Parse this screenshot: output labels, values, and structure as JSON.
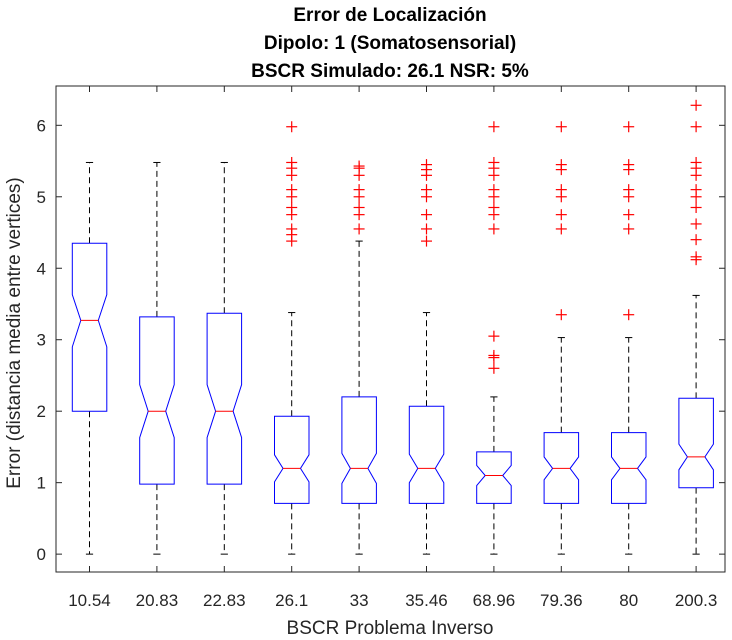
{
  "chart_data": {
    "type": "box",
    "title": [
      "Error de Localización",
      "Dipolo: 1 (Somatosensorial)",
      "BSCR Simulado: 26.1 NSR: 5%"
    ],
    "xlabel": "BSCR Problema Inverso",
    "ylabel": "Error (distancia media entre vertices)",
    "ylim": [
      -0.25,
      6.55
    ],
    "yticks": [
      0,
      1,
      2,
      3,
      4,
      5,
      6
    ],
    "ytick_labels": [
      "0",
      "1",
      "2",
      "3",
      "4",
      "5",
      "6"
    ],
    "notched": true,
    "grid": false,
    "categories": [
      "10.54",
      "20.83",
      "22.83",
      "26.1",
      "33",
      "35.46",
      "68.96",
      "79.36",
      "80",
      "200.3"
    ],
    "boxes": [
      {
        "whisker_low": 0,
        "q1": 2.0,
        "median": 3.27,
        "q3": 4.35,
        "whisker_high": 5.48,
        "notch_low": 2.9,
        "notch_high": 3.63,
        "outliers": []
      },
      {
        "whisker_low": 0,
        "q1": 0.98,
        "median": 2.0,
        "q3": 3.32,
        "whisker_high": 5.48,
        "notch_low": 1.63,
        "notch_high": 2.37,
        "outliers": []
      },
      {
        "whisker_low": 0,
        "q1": 0.98,
        "median": 2.0,
        "q3": 3.37,
        "whisker_high": 5.48,
        "notch_low": 1.63,
        "notch_high": 2.37,
        "outliers": []
      },
      {
        "whisker_low": 0,
        "q1": 0.71,
        "median": 1.2,
        "q3": 1.93,
        "whisker_high": 3.38,
        "notch_low": 1.01,
        "notch_high": 1.39,
        "outliers": [
          4.38,
          4.47,
          4.55,
          4.75,
          4.85,
          5.0,
          5.1,
          5.3,
          5.4,
          5.48,
          5.98
        ]
      },
      {
        "whisker_low": 0,
        "q1": 0.71,
        "median": 1.2,
        "q3": 2.2,
        "whisker_high": 4.38,
        "notch_low": 0.99,
        "notch_high": 1.41,
        "outliers": [
          4.55,
          4.75,
          4.85,
          5.0,
          5.1,
          5.3,
          5.4,
          5.43
        ]
      },
      {
        "whisker_low": 0,
        "q1": 0.71,
        "median": 1.2,
        "q3": 2.07,
        "whisker_high": 3.38,
        "notch_low": 1.0,
        "notch_high": 1.4,
        "outliers": [
          4.38,
          4.55,
          4.75,
          5.0,
          5.1,
          5.3,
          5.38,
          5.45
        ]
      },
      {
        "whisker_low": 0,
        "q1": 0.71,
        "median": 1.1,
        "q3": 1.43,
        "whisker_high": 2.2,
        "notch_low": 0.96,
        "notch_high": 1.24,
        "outliers": [
          2.6,
          2.75,
          2.78,
          3.05,
          4.55,
          4.75,
          4.85,
          5.0,
          5.1,
          5.3,
          5.4,
          5.48,
          5.98
        ]
      },
      {
        "whisker_low": 0,
        "q1": 0.71,
        "median": 1.2,
        "q3": 1.7,
        "whisker_high": 3.03,
        "notch_low": 1.04,
        "notch_high": 1.36,
        "outliers": [
          3.35,
          4.55,
          4.75,
          5.0,
          5.1,
          5.38,
          5.45,
          5.98
        ]
      },
      {
        "whisker_low": 0,
        "q1": 0.71,
        "median": 1.2,
        "q3": 1.7,
        "whisker_high": 3.03,
        "notch_low": 1.04,
        "notch_high": 1.36,
        "outliers": [
          3.35,
          4.55,
          4.75,
          5.0,
          5.1,
          5.38,
          5.45,
          5.98
        ]
      },
      {
        "whisker_low": 0,
        "q1": 0.93,
        "median": 1.36,
        "q3": 2.18,
        "whisker_high": 3.62,
        "notch_low": 1.18,
        "notch_high": 1.54,
        "outliers": [
          4.12,
          4.16,
          4.4,
          4.62,
          4.85,
          5.0,
          5.1,
          5.3,
          5.4,
          5.48,
          5.98,
          6.28
        ]
      }
    ],
    "colors": {
      "box": "#0000ff",
      "median": "#ff0000",
      "whisker": "#000000",
      "outlier": "#ff0000",
      "axes": "#262626"
    }
  }
}
